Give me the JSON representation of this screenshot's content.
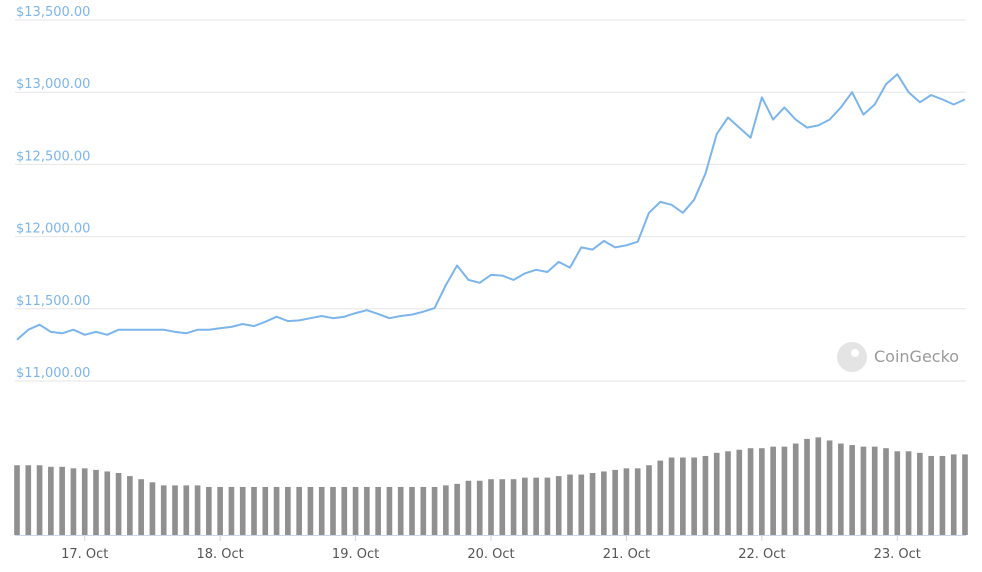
{
  "chart_data": {
    "type": "line",
    "watermark": "CoinGecko",
    "categories": [
      null,
      null,
      null,
      null,
      null,
      null,
      "17. Oct",
      null,
      null,
      null,
      null,
      null,
      null,
      null,
      null,
      null,
      null,
      null,
      "18. Oct",
      null,
      null,
      null,
      null,
      null,
      null,
      null,
      null,
      null,
      null,
      null,
      "19. Oct",
      null,
      null,
      null,
      null,
      null,
      null,
      null,
      null,
      null,
      null,
      null,
      "20. Oct",
      null,
      null,
      null,
      null,
      null,
      null,
      null,
      null,
      null,
      null,
      null,
      "21. Oct",
      null,
      null,
      null,
      null,
      null,
      null,
      null,
      null,
      null,
      null,
      null,
      "22. Oct",
      null,
      null,
      null,
      null,
      null,
      null,
      null,
      null,
      null,
      null,
      null,
      "23. Oct",
      null,
      null,
      null,
      null,
      null,
      null
    ],
    "series": [
      {
        "color": "#7cb5ec",
        "values": [
          11285,
          11355,
          11390,
          11340,
          11330,
          11355,
          11320,
          11340,
          11320,
          11355,
          11355,
          11355,
          11355,
          11355,
          11340,
          11330,
          11355,
          11355,
          11365,
          11375,
          11395,
          11380,
          11410,
          11445,
          11415,
          11420,
          11435,
          11450,
          11435,
          11445,
          11470,
          11490,
          11465,
          11435,
          11450,
          11460,
          11480,
          11505,
          11665,
          11800,
          11700,
          11680,
          11735,
          11730,
          11700,
          11745,
          11770,
          11755,
          11825,
          11785,
          11925,
          11910,
          11970,
          11925,
          11940,
          11965,
          12165,
          12240,
          12220,
          12165,
          12255,
          12435,
          12710,
          12825,
          12755,
          12685,
          12965,
          12810,
          12895,
          12810,
          12755,
          12770,
          12810,
          12895,
          13000,
          12845,
          12915,
          13055,
          13125,
          13000,
          12930,
          12980,
          12950,
          12915,
          12950
        ]
      },
      {
        "color": "#909090",
        "axis": "y2",
        "values": [
          45,
          45,
          45,
          44,
          44,
          43,
          43,
          42,
          41,
          40,
          38,
          36,
          34,
          32,
          32,
          32,
          32,
          31,
          31,
          31,
          31,
          31,
          31,
          31,
          31,
          31,
          31,
          31,
          31,
          31,
          31,
          31,
          31,
          31,
          31,
          31,
          31,
          31,
          32,
          33,
          35,
          35,
          36,
          36,
          36,
          37,
          37,
          37,
          38,
          39,
          39,
          40,
          41,
          42,
          43,
          43,
          45,
          48,
          50,
          50,
          50,
          51,
          53,
          54,
          55,
          56,
          56,
          57,
          57,
          59,
          62,
          63,
          61,
          59,
          58,
          57,
          57,
          56,
          54,
          54,
          53,
          51,
          51,
          52,
          52
        ]
      }
    ],
    "ylim": [
      11000,
      13500
    ],
    "yticks": [
      {
        "value": 11000,
        "label": "$11,000.00"
      },
      {
        "value": 11500,
        "label": "$11,500.00"
      },
      {
        "value": 12000,
        "label": "$12,000.00"
      },
      {
        "value": 12500,
        "label": "$12,500.00"
      },
      {
        "value": 13000,
        "label": "$13,000.00"
      },
      {
        "value": 13500,
        "label": "$13,500.00"
      }
    ],
    "y2lim": [
      0,
      100
    ],
    "grid": true
  }
}
